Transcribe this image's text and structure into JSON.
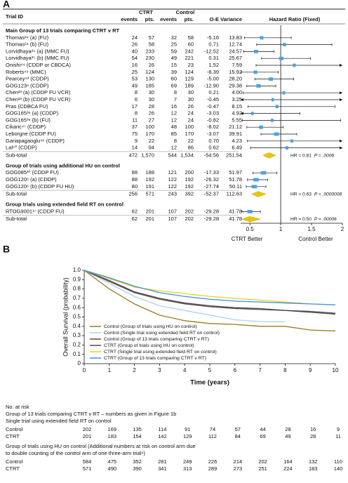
{
  "chart_data": [
    {
      "type": "forest",
      "panel": "A",
      "columns": [
        "Trial ID",
        "CTRT",
        "events",
        "pts.",
        "Control",
        "events",
        "pts.",
        "O-E",
        "Variance",
        "Hazard Ratio (Fixed)"
      ],
      "xlim": [
        0.35,
        2
      ],
      "xticks": [
        0.5,
        1,
        1.5,
        2
      ],
      "reference": 1,
      "left_label": "CTRT Better",
      "right_label": "Control Better",
      "square_color": "#4aa3df",
      "diamond_color": "#e8c800",
      "groups": [
        {
          "title": "Main Group of 13 trials comparing CTRT v RT",
          "rows": [
            {
              "trial": "Thomas²⁴ (a) (FU)",
              "ctrt_events": 24,
              "ctrt_pts": 57,
              "control_events": 32,
              "control_pts": 58,
              "o_e": "-5.16",
              "variance": "13.83",
              "hr": 0.69,
              "ci": [
                0.41,
                1.17
              ]
            },
            {
              "trial": "Thomas²⁴ (b) (FU)",
              "ctrt_events": 26,
              "ctrt_pts": 58,
              "control_events": 25,
              "control_pts": 60,
              "o_e": "0.71",
              "variance": "12.74",
              "hr": 1.06,
              "ci": [
                0.61,
                1.83
              ]
            },
            {
              "trial": "Lorvidhaya²⁵ (a) (MMC FU)",
              "ctrt_events": 40,
              "ctrt_pts": 233,
              "control_events": 59,
              "control_pts": 242,
              "o_e": "-12.52",
              "variance": "24.57",
              "hr": 0.6,
              "ci": [
                0.4,
                0.89
              ]
            },
            {
              "trial": "Lorvidhaya²⁵ (b) (MMC FU)",
              "ctrt_events": 54,
              "ctrt_pts": 230,
              "control_events": 49,
              "control_pts": 221,
              "o_e": "0.31",
              "variance": "25.67",
              "hr": 1.01,
              "ci": [
                0.69,
                1.48
              ]
            },
            {
              "trial": "Onishi⁴⁴ (CDDP or CBDCA)",
              "ctrt_events": 16,
              "ctrt_pts": 26,
              "control_events": 15,
              "control_pts": 23,
              "o_e": "1.52",
              "variance": "7.59",
              "hr": 1.22,
              "ci": [
                0.6,
                2.48
              ]
            },
            {
              "trial": "Roberts⁴⁹ (MMC)",
              "ctrt_events": 25,
              "ctrt_pts": 124,
              "control_events": 39,
              "control_pts": 124,
              "o_e": "-8.39",
              "variance": "15.92",
              "hr": 0.59,
              "ci": [
                0.36,
                0.96
              ]
            },
            {
              "trial": "Pearcey⁴³ (CDDP)",
              "ctrt_events": 53,
              "ctrt_pts": 130,
              "control_events": 60,
              "control_pts": 129,
              "o_e": "-5.00",
              "variance": "28.20",
              "hr": 0.84,
              "ci": [
                0.58,
                1.21
              ]
            },
            {
              "trial": "GOG123⁶ (CDDP)",
              "ctrt_events": 49,
              "ctrt_pts": 185,
              "control_events": 69,
              "control_pts": 189,
              "o_e": "-12.90",
              "variance": "29.38",
              "hr": 0.64,
              "ci": [
                0.45,
                0.92
              ]
            },
            {
              "trial": "Chen²³ (a) (CDDP FU VCR)",
              "ctrt_events": 8,
              "ctrt_pts": 30,
              "control_events": 8,
              "control_pts": 30,
              "o_e": "0.21",
              "variance": "4.00",
              "hr": 1.05,
              "ci": [
                0.39,
                2.8
              ]
            },
            {
              "trial": "Chen²³ (b) (CDDP FU VCR)",
              "ctrt_events": 6,
              "ctrt_pts": 30,
              "control_events": 7,
              "control_pts": 30,
              "o_e": "-0.45",
              "variance": "3.25",
              "hr": 0.87,
              "ci": [
                0.29,
                2.57
              ]
            },
            {
              "trial": "Pras (CDBCA FU)",
              "ctrt_events": 17,
              "ctrt_pts": 28,
              "control_events": 16,
              "control_pts": 26,
              "o_e": "-0.47",
              "variance": "8.15",
              "hr": 0.94,
              "ci": [
                0.47,
                1.88
              ]
            },
            {
              "trial": "GOG165³⁶ (a) (CDDP)",
              "ctrt_events": 8,
              "ctrt_pts": 26,
              "control_events": 12,
              "control_pts": 24,
              "o_e": "-3.03",
              "variance": "4.92",
              "hr": 0.54,
              "ci": [
                0.22,
                1.31
              ]
            },
            {
              "trial": "GOG165³⁶ (b) (FU)",
              "ctrt_events": 11,
              "ctrt_pts": 27,
              "control_events": 12,
              "control_pts": 24,
              "o_e": "-0.82",
              "variance": "5.55",
              "hr": 0.86,
              "ci": [
                0.38,
                1.97
              ]
            },
            {
              "trial": "Cikaric⁴⁷ (CDDP)",
              "ctrt_events": 37,
              "ctrt_pts": 100,
              "control_events": 48,
              "control_pts": 100,
              "o_e": "-8.02",
              "variance": "21.12",
              "hr": 0.68,
              "ci": [
                0.45,
                1.04
              ]
            },
            {
              "trial": "Leborgne (CDDP FU)",
              "ctrt_events": 75,
              "ctrt_pts": 170,
              "control_events": 85,
              "control_pts": 170,
              "o_e": "-3.07",
              "variance": "39.91",
              "hr": 0.93,
              "ci": [
                0.68,
                1.26
              ]
            },
            {
              "trial": "Gariapagaoglu⁴⁶ (CDDP)",
              "ctrt_events": 9,
              "ctrt_pts": 22,
              "control_events": 8,
              "control_pts": 22,
              "o_e": "0.70",
              "variance": "4.23",
              "hr": 1.18,
              "ci": [
                0.46,
                3.06
              ]
            },
            {
              "trial": "Lal⁵⁰ (CDDP)",
              "ctrt_events": 14,
              "ctrt_pts": 94,
              "control_events": 12,
              "control_pts": 86,
              "o_e": "0.62",
              "variance": "6.49",
              "hr": 1.1,
              "ci": [
                0.51,
                2.37
              ]
            }
          ],
          "subtotal": {
            "label": "Sub-total",
            "ctrt_events": 472,
            "ctrt_pts": "1,570",
            "control_events": 544,
            "control_pts": "1,534",
            "o_e": "-54.56",
            "variance": "251.54",
            "hr": 0.81,
            "ci": [
              0.71,
              0.92
            ],
            "hr_label": "HR = 0.81",
            "p_label": "P = .0006"
          }
        },
        {
          "title": "Group of trials using additional HU on control",
          "rows": [
            {
              "trial": "GOG085³⁰ (CDDP FU)",
              "ctrt_events": 88,
              "ctrt_pts": 188,
              "control_events": 121,
              "control_pts": 200,
              "o_e": "-17.33",
              "variance": "51.97",
              "hr": 0.72,
              "ci": [
                0.55,
                0.94
              ]
            },
            {
              "trial": "GOG120⁶ (a) (CDDP)",
              "ctrt_events": 88,
              "ctrt_pts": 192,
              "control_events": 122,
              "control_pts": 192,
              "o_e": "-26.32",
              "variance": "51.78",
              "hr": 0.6,
              "ci": [
                0.46,
                0.79
              ]
            },
            {
              "trial": "GOG120⁶ (b) (CDDP FU HU)",
              "ctrt_events": 80,
              "ctrt_pts": 191,
              "control_events": 122,
              "control_pts": 192,
              "o_e": "-27.74",
              "variance": "50.11",
              "hr": 0.57,
              "ci": [
                0.44,
                0.76
              ]
            }
          ],
          "subtotal": {
            "label": "Sub-total",
            "ctrt_events": 256,
            "ctrt_pts": 571,
            "control_events": 243,
            "control_pts": 392,
            "o_e": "-52.37",
            "variance": "112.63",
            "hr": 0.63,
            "ci": [
              0.53,
              0.76
            ],
            "hr_label": "HR = 0.63",
            "p_label": "P = .0000008"
          }
        },
        {
          "title": "Group trials using extended field RT on control",
          "rows": [
            {
              "trial": "RTOG9001¹⁷ (CDDP FU)",
              "ctrt_events": 62,
              "ctrt_pts": 201,
              "control_events": 107,
              "control_pts": 202,
              "o_e": "-29.28",
              "variance": "41.78",
              "hr": 0.5,
              "ci": [
                0.37,
                0.67
              ]
            }
          ],
          "subtotal": {
            "label": "Sub-total",
            "ctrt_events": 62,
            "ctrt_pts": 201,
            "control_events": 107,
            "control_pts": 202,
            "o_e": "-29.28",
            "variance": "41.78",
            "hr": 0.5,
            "ci": [
              0.37,
              0.67
            ],
            "hr_label": "HR = 0.50",
            "p_label": "P = .00006"
          }
        }
      ]
    },
    {
      "type": "line",
      "panel": "B",
      "xlabel": "Time (years)",
      "ylabel": "Overall Survival (probability)",
      "x": [
        0,
        1,
        2,
        3,
        4,
        5,
        6,
        7,
        8,
        9,
        10
      ],
      "xlim": [
        0,
        10
      ],
      "xticks": [
        0,
        1,
        2,
        3,
        4,
        5,
        6,
        7,
        8,
        9,
        10
      ],
      "ylim": [
        0,
        1
      ],
      "yticks": [
        0,
        0.1,
        0.2,
        0.3,
        0.4,
        0.5,
        0.6,
        0.7,
        0.8,
        0.9,
        {
          "value": 1,
          "label": "1.0"
        }
      ],
      "legend": "lower left",
      "series": [
        {
          "name": "Control  (Group of trials using HU on control)",
          "color": "#9a7b1c",
          "values": [
            1,
            0.8,
            0.64,
            0.52,
            0.46,
            0.43,
            0.42,
            0.4,
            0.4,
            0.36,
            0.35
          ]
        },
        {
          "name": "Control  (Single trial using extended field RT on control)",
          "color": "#a9d3f0",
          "values": [
            1,
            0.86,
            0.72,
            0.62,
            0.57,
            0.52,
            0.47,
            0.45,
            0.45,
            null,
            null
          ]
        },
        {
          "name": "Control  (Group of 13 trials comparing CTRT v RT)",
          "color": "#5c4a3a",
          "values": [
            1,
            0.88,
            0.76,
            0.69,
            0.64,
            0.61,
            0.59,
            0.58,
            0.57,
            0.55,
            0.53
          ]
        },
        {
          "name": "CTRT (Group of trials using HU on control)",
          "color": "#4d4763",
          "values": [
            1,
            0.89,
            0.77,
            0.7,
            0.65,
            0.62,
            0.6,
            0.59,
            0.57,
            0.56,
            0.54
          ]
        },
        {
          "name": "CTRT  (Single trial using extended field RT on control)",
          "color": "#e8d020",
          "values": [
            1,
            0.91,
            0.82,
            0.78,
            0.75,
            0.72,
            0.7,
            0.68,
            0.66,
            0.64,
            null
          ]
        },
        {
          "name": "CTRT  (Group of 13 trials comparing CTRT v RT)",
          "color": "#3d8fdc",
          "values": [
            1,
            0.92,
            0.83,
            0.76,
            0.72,
            0.69,
            0.67,
            0.66,
            0.65,
            0.64,
            0.63
          ]
        }
      ],
      "risk_table": {
        "title": "No. at risk",
        "sections": [
          {
            "headings": [
              "Group of 13 trials comparing CTRT v RT – numbers as given in Figure 1b",
              "Single trial using extended field RT on control"
            ],
            "rows": [
              {
                "label": "Control",
                "values": [
                  202,
                  169,
                  135,
                  114,
                  91,
                  74,
                  57,
                  44,
                  28,
                  16,
                  9
                ]
              },
              {
                "label": "CTRT",
                "values": [
                  201,
                  183,
                  154,
                  142,
                  129,
                  112,
                  84,
                  69,
                  49,
                  28,
                  11
                ]
              }
            ]
          },
          {
            "headings": [
              "Group of trials using HU on control (Additional numbers at risk on control arm due",
              "to double counting of the control arm of one three-arm trial⁶)"
            ],
            "rows": [
              {
                "label": "Control",
                "values": [
                  584,
                  475,
                  352,
                  281,
                  249,
                  226,
                  214,
                  202,
                  164,
                  132,
                  110
                ]
              },
              {
                "label": "CTRT",
                "values": [
                  571,
                  490,
                  390,
                  341,
                  313,
                  289,
                  273,
                  251,
                  224,
                  183,
                  140
                ]
              }
            ]
          }
        ]
      }
    }
  ]
}
